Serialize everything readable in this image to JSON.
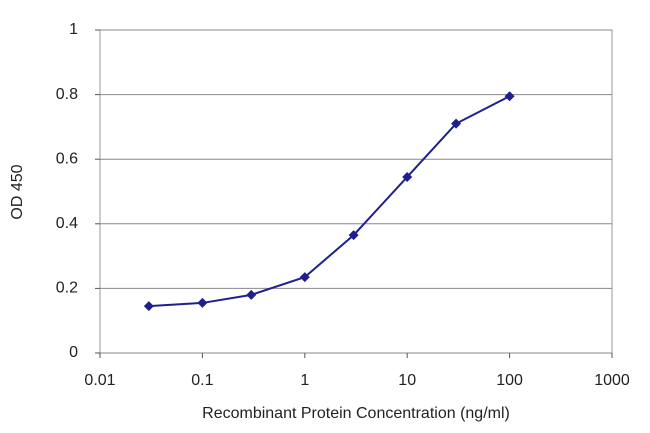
{
  "chart_data": {
    "type": "line",
    "x": [
      0.03,
      0.1,
      0.3,
      1,
      3,
      10,
      30,
      100
    ],
    "values": [
      0.145,
      0.155,
      0.18,
      0.235,
      0.365,
      0.545,
      0.71,
      0.795
    ],
    "color": "#1f1f8f",
    "xlabel": "Recombinant Protein Concentration (ng/ml)",
    "ylabel": "OD 450",
    "xlog": true,
    "xlim": [
      0.01,
      1000
    ],
    "xticks": [
      0.01,
      0.1,
      1,
      10,
      100,
      1000
    ],
    "ylim": [
      0,
      1
    ],
    "yticks": [
      0,
      0.2,
      0.4,
      0.6,
      0.8,
      1
    ],
    "grid": true
  }
}
